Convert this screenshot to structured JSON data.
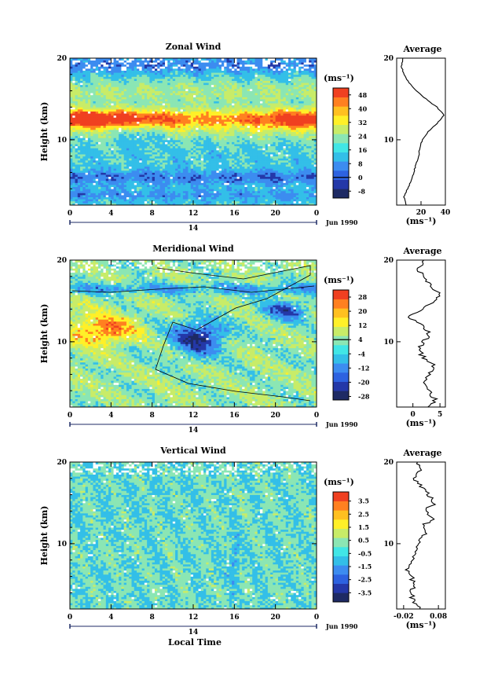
{
  "figure": {
    "xlabel": "Local Time",
    "date_label": "Jun 1990",
    "day_label": "14",
    "ylabel": "Height (km)",
    "unit_label": "(ms⁻¹)",
    "average_title": "Average",
    "panels": [
      {
        "title": "Zonal Wind"
      },
      {
        "title": "Meridional Wind"
      },
      {
        "title": "Vertical Wind"
      }
    ]
  },
  "colors": {
    "palette": [
      "#1e2a64",
      "#2438a8",
      "#2d62e0",
      "#3c8cf0",
      "#33bfe8",
      "#41e6e6",
      "#8be6b4",
      "#c8ec68",
      "#fff028",
      "#ffc020",
      "#ff8020",
      "#f04020"
    ]
  },
  "chart_data": [
    {
      "type": "heatmap",
      "title": "Zonal Wind",
      "xlabel": "",
      "ylabel": "Height (km)",
      "x_ticks": [
        "0",
        "4",
        "8",
        "12",
        "16",
        "20",
        "0"
      ],
      "xlim": [
        0,
        24
      ],
      "y_ticks": [
        "20",
        "10"
      ],
      "ylim": [
        2,
        20
      ],
      "colorbar": {
        "unit": "(ms⁻¹)",
        "levels": [
          -8,
          0,
          8,
          16,
          24,
          32,
          40,
          48
        ],
        "min": -12,
        "max": 52
      },
      "average_profile": {
        "title": "Average",
        "xlabel": "(ms⁻¹)",
        "x_ticks": [
          "20",
          "40"
        ],
        "xlim": [
          0,
          40
        ],
        "y_ticks": [
          "20",
          "10"
        ],
        "height": [
          2,
          3,
          4,
          5,
          6,
          7,
          8,
          9,
          10,
          11,
          12,
          13,
          14,
          15,
          16,
          17,
          18,
          19,
          20
        ],
        "value": [
          8,
          6,
          9,
          12,
          14,
          16,
          18,
          19,
          21,
          26,
          33,
          39,
          33,
          24,
          16,
          10,
          6,
          4,
          5
        ]
      }
    },
    {
      "type": "heatmap",
      "title": "Meridional Wind",
      "xlabel": "",
      "ylabel": "Height (km)",
      "x_ticks": [
        "0",
        "4",
        "8",
        "12",
        "16",
        "20",
        "0"
      ],
      "xlim": [
        0,
        24
      ],
      "y_ticks": [
        "20",
        "10"
      ],
      "ylim": [
        2,
        20
      ],
      "colorbar": {
        "unit": "(ms⁻¹)",
        "levels": [
          -28,
          -20,
          -12,
          -4,
          4,
          12,
          20,
          28
        ],
        "min": -30,
        "max": 32
      },
      "average_profile": {
        "title": "Average",
        "xlabel": "(ms⁻¹)",
        "x_ticks": [
          "0",
          "5"
        ],
        "xlim": [
          -3,
          6
        ],
        "y_ticks": [
          "20",
          "10"
        ],
        "height": [
          2,
          3,
          4,
          5,
          6,
          7,
          8,
          9,
          10,
          11,
          12,
          13,
          14,
          15,
          16,
          17,
          18,
          19,
          20
        ],
        "value": [
          3,
          4,
          3,
          2,
          3,
          4,
          2,
          1,
          2,
          3,
          2,
          -1,
          2,
          4,
          5,
          3,
          2,
          1,
          2
        ]
      }
    },
    {
      "type": "heatmap",
      "title": "Vertical Wind",
      "xlabel": "Local Time",
      "ylabel": "Height (km)",
      "x_ticks": [
        "0",
        "4",
        "8",
        "12",
        "16",
        "20",
        "0"
      ],
      "xlim": [
        0,
        24
      ],
      "y_ticks": [
        "20",
        "10"
      ],
      "ylim": [
        2,
        20
      ],
      "colorbar": {
        "unit": "(ms⁻¹)",
        "levels": [
          -3.5,
          -2.5,
          -1.5,
          -0.5,
          0.5,
          1.5,
          2.5,
          3.5
        ],
        "min": -4.2,
        "max": 4.2
      },
      "average_profile": {
        "title": "Average",
        "xlabel": "(ms⁻¹)",
        "x_ticks": [
          "-0.02",
          "0.08"
        ],
        "xlim": [
          -0.04,
          0.1
        ],
        "y_ticks": [
          "20",
          "10"
        ],
        "height": [
          2,
          3,
          4,
          5,
          6,
          7,
          8,
          9,
          10,
          11,
          12,
          13,
          14,
          15,
          16,
          17,
          18,
          19,
          20
        ],
        "value": [
          0.03,
          0.01,
          0.0,
          0.01,
          0.0,
          -0.01,
          0.0,
          0.01,
          0.02,
          0.04,
          0.03,
          0.06,
          0.04,
          0.07,
          0.05,
          0.03,
          0.01,
          0.03,
          0.02
        ]
      }
    }
  ]
}
